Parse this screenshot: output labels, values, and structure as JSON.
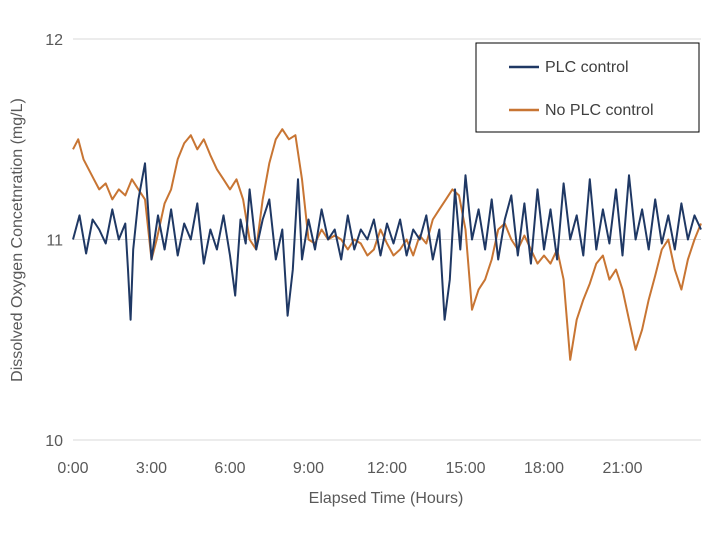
{
  "chart_data": {
    "type": "line",
    "title": "",
    "xlabel": "Elapsed Time (Hours)",
    "ylabel": "Dissolved Oxygen Concetnration (mg/L)",
    "xlim": [
      0,
      24
    ],
    "ylim": [
      10,
      12
    ],
    "x_ticks": [
      0,
      3,
      6,
      9,
      12,
      15,
      18,
      21
    ],
    "x_tick_labels": [
      "0:00",
      "3:00",
      "6:00",
      "9:00",
      "12:00",
      "15:00",
      "18:00",
      "21:00"
    ],
    "y_ticks": [
      10,
      11,
      12
    ],
    "y_tick_labels": [
      "10",
      "11",
      "12"
    ],
    "grid": true,
    "legend_position": "top-right",
    "series": [
      {
        "name": "PLC control",
        "color": "#1f3864",
        "x": [
          0,
          0.25,
          0.5,
          0.75,
          1.0,
          1.25,
          1.5,
          1.75,
          2.0,
          2.1,
          2.2,
          2.3,
          2.5,
          2.75,
          3.0,
          3.25,
          3.5,
          3.75,
          4.0,
          4.25,
          4.5,
          4.75,
          5.0,
          5.25,
          5.5,
          5.75,
          6.0,
          6.2,
          6.4,
          6.6,
          6.75,
          7.0,
          7.25,
          7.5,
          7.75,
          8.0,
          8.2,
          8.4,
          8.6,
          8.75,
          9.0,
          9.25,
          9.5,
          9.75,
          10.0,
          10.25,
          10.5,
          10.75,
          11.0,
          11.25,
          11.5,
          11.75,
          12.0,
          12.25,
          12.5,
          12.75,
          13.0,
          13.25,
          13.5,
          13.75,
          14.0,
          14.2,
          14.4,
          14.6,
          14.8,
          15.0,
          15.25,
          15.5,
          15.75,
          16.0,
          16.25,
          16.5,
          16.75,
          17.0,
          17.25,
          17.5,
          17.75,
          18.0,
          18.25,
          18.5,
          18.75,
          19.0,
          19.25,
          19.5,
          19.75,
          20.0,
          20.25,
          20.5,
          20.75,
          21.0,
          21.25,
          21.5,
          21.75,
          22.0,
          22.25,
          22.5,
          22.75,
          23.0,
          23.25,
          23.5,
          23.75,
          24.0
        ],
        "values": [
          11.0,
          11.12,
          10.93,
          11.1,
          11.05,
          10.98,
          11.15,
          11.0,
          11.08,
          10.85,
          10.6,
          10.95,
          11.2,
          11.38,
          10.9,
          11.12,
          10.95,
          11.15,
          10.92,
          11.08,
          11.0,
          11.18,
          10.88,
          11.05,
          10.95,
          11.12,
          10.92,
          10.72,
          11.1,
          10.98,
          11.25,
          10.95,
          11.1,
          11.2,
          10.9,
          11.05,
          10.62,
          10.85,
          11.3,
          10.9,
          11.1,
          10.95,
          11.15,
          11.0,
          11.05,
          10.9,
          11.12,
          10.95,
          11.05,
          11.0,
          11.1,
          10.92,
          11.08,
          10.98,
          11.1,
          10.92,
          11.05,
          11.0,
          11.12,
          10.9,
          11.05,
          10.6,
          10.8,
          11.25,
          10.95,
          11.32,
          11.0,
          11.15,
          10.95,
          11.2,
          10.9,
          11.1,
          11.22,
          10.92,
          11.18,
          10.88,
          11.25,
          10.95,
          11.15,
          10.9,
          11.28,
          11.0,
          11.12,
          10.92,
          11.3,
          10.95,
          11.15,
          10.98,
          11.25,
          10.92,
          11.32,
          11.0,
          11.15,
          10.95,
          11.2,
          10.98,
          11.12,
          10.95,
          11.18,
          11.0,
          11.12,
          11.05
        ]
      },
      {
        "name": "No PLC control",
        "color": "#c87533",
        "x": [
          0,
          0.2,
          0.4,
          0.6,
          0.8,
          1.0,
          1.25,
          1.5,
          1.75,
          2.0,
          2.25,
          2.5,
          2.75,
          3.0,
          3.2,
          3.5,
          3.75,
          4.0,
          4.25,
          4.5,
          4.75,
          5.0,
          5.25,
          5.5,
          5.75,
          6.0,
          6.25,
          6.5,
          6.75,
          7.0,
          7.25,
          7.5,
          7.75,
          8.0,
          8.25,
          8.5,
          8.75,
          9.0,
          9.25,
          9.5,
          9.75,
          10.0,
          10.25,
          10.5,
          10.75,
          11.0,
          11.25,
          11.5,
          11.75,
          12.0,
          12.25,
          12.5,
          12.75,
          13.0,
          13.25,
          13.5,
          13.75,
          14.0,
          14.25,
          14.5,
          14.75,
          15.0,
          15.25,
          15.5,
          15.75,
          16.0,
          16.25,
          16.5,
          16.75,
          17.0,
          17.25,
          17.5,
          17.75,
          18.0,
          18.25,
          18.5,
          18.75,
          19.0,
          19.25,
          19.5,
          19.75,
          20.0,
          20.25,
          20.5,
          20.75,
          21.0,
          21.25,
          21.5,
          21.75,
          22.0,
          22.25,
          22.5,
          22.75,
          23.0,
          23.25,
          23.5,
          23.75,
          24.0
        ],
        "values": [
          11.45,
          11.5,
          11.4,
          11.35,
          11.3,
          11.25,
          11.28,
          11.2,
          11.25,
          11.22,
          11.3,
          11.25,
          11.2,
          10.9,
          11.0,
          11.18,
          11.25,
          11.4,
          11.48,
          11.52,
          11.45,
          11.5,
          11.42,
          11.35,
          11.3,
          11.25,
          11.3,
          11.2,
          11.0,
          10.95,
          11.2,
          11.38,
          11.5,
          11.55,
          11.5,
          11.52,
          11.3,
          11.0,
          10.98,
          11.05,
          11.0,
          11.02,
          11.0,
          10.95,
          11.0,
          10.98,
          10.92,
          10.95,
          11.05,
          10.98,
          10.92,
          10.95,
          11.0,
          10.92,
          11.02,
          10.98,
          11.1,
          11.15,
          11.2,
          11.25,
          11.22,
          11.05,
          10.65,
          10.75,
          10.8,
          10.9,
          11.05,
          11.08,
          11.0,
          10.95,
          11.02,
          10.95,
          10.88,
          10.92,
          10.88,
          10.95,
          10.8,
          10.4,
          10.6,
          10.7,
          10.78,
          10.88,
          10.92,
          10.8,
          10.85,
          10.75,
          10.6,
          10.45,
          10.55,
          10.7,
          10.82,
          10.95,
          11.0,
          10.85,
          10.75,
          10.9,
          11.0,
          11.08
        ]
      }
    ]
  }
}
